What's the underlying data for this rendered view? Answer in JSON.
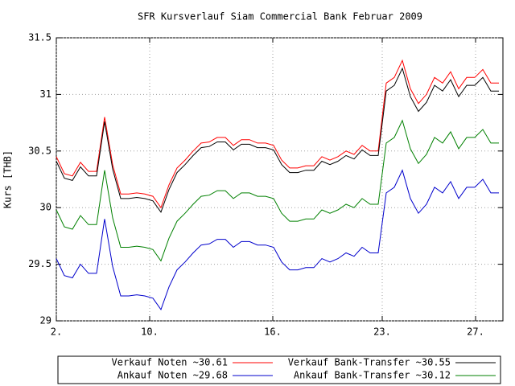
{
  "chart_data": {
    "type": "line",
    "title": "SFR Kursverlauf Siam Commercial Bank Februar 2009",
    "y_label": "Kurs [THB]",
    "grid": true,
    "xlim": [
      0,
      55.5
    ],
    "xticks": [
      {
        "value": 0,
        "label": "2."
      },
      {
        "value": 11.6,
        "label": "10."
      },
      {
        "value": 26.9,
        "label": "16."
      },
      {
        "value": 40.5,
        "label": "23."
      },
      {
        "value": 52.1,
        "label": "27."
      }
    ],
    "ylim": [
      29,
      31.5
    ],
    "yticks": [
      29,
      29.5,
      30,
      30.5,
      31,
      31.5
    ],
    "x": [
      0,
      1,
      2,
      3,
      4,
      5,
      6,
      7,
      8,
      9,
      10,
      11,
      12,
      13,
      14,
      15,
      16,
      17,
      18,
      19,
      20,
      21,
      22,
      23,
      24,
      25,
      26,
      27,
      28,
      29,
      30,
      31,
      32,
      33,
      34,
      35,
      36,
      37,
      38,
      39,
      40,
      41,
      42,
      43,
      44,
      45,
      46,
      47,
      48,
      49,
      50,
      51,
      52,
      53,
      54,
      55
    ],
    "series": [
      {
        "name": "Verkauf Noten ~30.61",
        "color": "#ff0000",
        "values": [
          30.45,
          30.3,
          30.28,
          30.4,
          30.32,
          30.32,
          30.8,
          30.38,
          30.12,
          30.12,
          30.13,
          30.12,
          30.1,
          30.0,
          30.2,
          30.35,
          30.42,
          30.5,
          30.57,
          30.58,
          30.62,
          30.62,
          30.55,
          30.6,
          30.6,
          30.57,
          30.57,
          30.55,
          30.42,
          30.35,
          30.35,
          30.37,
          30.37,
          30.45,
          30.42,
          30.45,
          30.5,
          30.47,
          30.55,
          30.5,
          30.5,
          31.1,
          31.15,
          31.3,
          31.05,
          30.92,
          31.0,
          31.15,
          31.1,
          31.2,
          31.05,
          31.15,
          31.15,
          31.22,
          31.1,
          31.1
        ]
      },
      {
        "name": "Verkauf Bank-Transfer ~30.55",
        "color": "#000000",
        "values": [
          30.41,
          30.26,
          30.24,
          30.36,
          30.28,
          30.28,
          30.76,
          30.34,
          30.08,
          30.08,
          30.09,
          30.08,
          30.06,
          29.96,
          30.16,
          30.31,
          30.38,
          30.46,
          30.53,
          30.54,
          30.58,
          30.58,
          30.51,
          30.56,
          30.56,
          30.53,
          30.53,
          30.51,
          30.38,
          30.31,
          30.31,
          30.33,
          30.33,
          30.41,
          30.38,
          30.41,
          30.46,
          30.43,
          30.51,
          30.46,
          30.46,
          31.03,
          31.08,
          31.23,
          30.98,
          30.85,
          30.93,
          31.08,
          31.03,
          31.13,
          30.98,
          31.08,
          31.08,
          31.15,
          31.03,
          31.03
        ]
      },
      {
        "name": "Ankauf Noten ~29.68",
        "color": "#0000cc",
        "values": [
          29.55,
          29.4,
          29.38,
          29.5,
          29.42,
          29.42,
          29.9,
          29.48,
          29.22,
          29.22,
          29.23,
          29.22,
          29.2,
          29.1,
          29.3,
          29.45,
          29.52,
          29.6,
          29.67,
          29.68,
          29.72,
          29.72,
          29.65,
          29.7,
          29.7,
          29.67,
          29.67,
          29.65,
          29.52,
          29.45,
          29.45,
          29.47,
          29.47,
          29.55,
          29.52,
          29.55,
          29.6,
          29.57,
          29.65,
          29.6,
          29.6,
          30.13,
          30.18,
          30.33,
          30.08,
          29.95,
          30.03,
          30.18,
          30.13,
          30.23,
          30.08,
          30.18,
          30.18,
          30.25,
          30.13,
          30.13
        ]
      },
      {
        "name": "Ankauf Bank-Transfer ~30.12",
        "color": "#008000",
        "values": [
          29.98,
          29.83,
          29.81,
          29.93,
          29.85,
          29.85,
          30.33,
          29.91,
          29.65,
          29.65,
          29.66,
          29.65,
          29.63,
          29.53,
          29.73,
          29.88,
          29.95,
          30.03,
          30.1,
          30.11,
          30.15,
          30.15,
          30.08,
          30.13,
          30.13,
          30.1,
          30.1,
          30.08,
          29.95,
          29.88,
          29.88,
          29.9,
          29.9,
          29.98,
          29.95,
          29.98,
          30.03,
          30.0,
          30.08,
          30.03,
          30.03,
          30.57,
          30.62,
          30.77,
          30.52,
          30.39,
          30.47,
          30.62,
          30.57,
          30.67,
          30.52,
          30.62,
          30.62,
          30.69,
          30.57,
          30.57
        ]
      }
    ]
  }
}
